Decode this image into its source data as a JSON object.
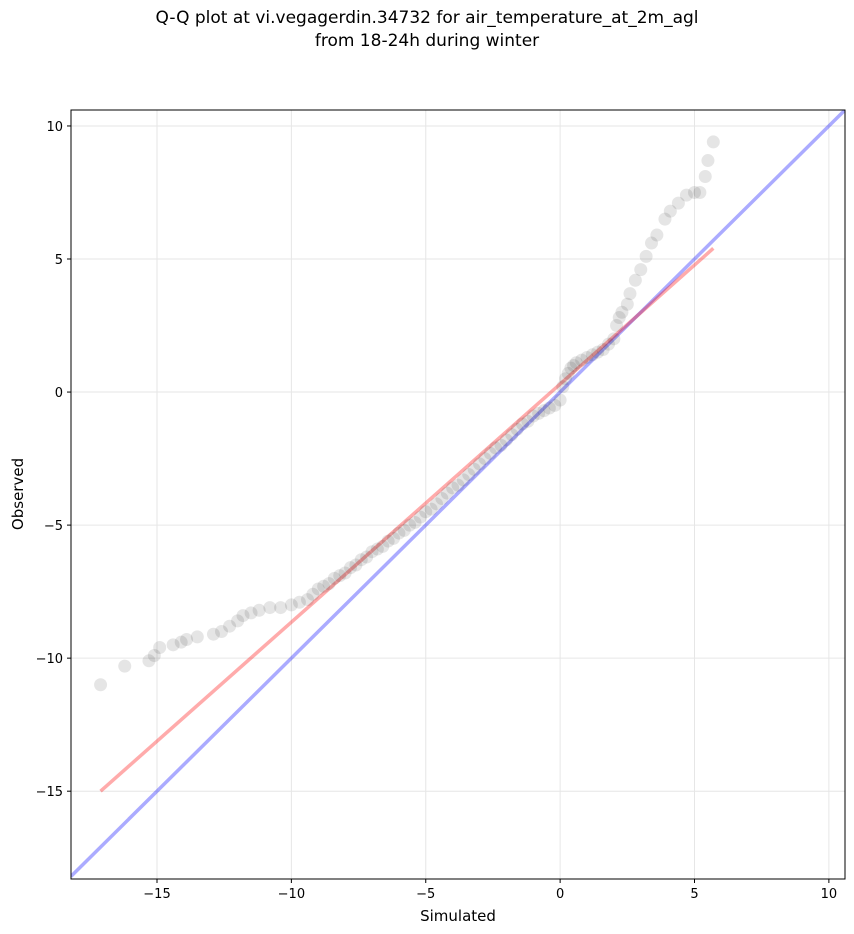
{
  "title": {
    "line1": "Q-Q plot at vi.vegagerdin.34732 for air_temperature_at_2m_agl",
    "line2": "from 18-24h during winter"
  },
  "chart_data": {
    "type": "scatter",
    "xlabel": "Simulated",
    "ylabel": "Observed",
    "xlim": [
      -18.2,
      10.6
    ],
    "ylim": [
      -18.3,
      10.6
    ],
    "xticks": [
      -15,
      -10,
      -5,
      0,
      5,
      10
    ],
    "yticks": [
      -15,
      -10,
      -5,
      0,
      5,
      10
    ],
    "xtick_labels": [
      "−15",
      "−10",
      "−5",
      "0",
      "5",
      "10"
    ],
    "ytick_labels": [
      "−15",
      "−10",
      "−5",
      "0",
      "5",
      "10"
    ],
    "grid": true,
    "colors": {
      "points": "#000000",
      "identity_line": "#0000ff",
      "fit_line": "#ff0000"
    },
    "identity_line": {
      "x": [
        -18.2,
        10.6
      ],
      "y": [
        -18.2,
        10.6
      ]
    },
    "fit_line": {
      "x": [
        -17.1,
        5.7
      ],
      "y": [
        -15.0,
        5.4
      ]
    },
    "quantiles": {
      "x": [
        -17.1,
        -16.2,
        -15.3,
        -15.1,
        -14.9,
        -14.4,
        -14.1,
        -13.9,
        -13.5,
        -12.9,
        -12.6,
        -12.3,
        -12.0,
        -11.8,
        -11.5,
        -11.2,
        -10.8,
        -10.4,
        -10.0,
        -9.7,
        -9.4,
        -9.2,
        -9.0,
        -8.8,
        -8.6,
        -8.4,
        -8.2,
        -8.0,
        -7.8,
        -7.6,
        -7.4,
        -7.2,
        -7.0,
        -6.8,
        -6.6,
        -6.4,
        -6.2,
        -6.0,
        -5.8,
        -5.6,
        -5.4,
        -5.2,
        -5.0,
        -4.8,
        -4.6,
        -4.4,
        -4.2,
        -4.0,
        -3.8,
        -3.6,
        -3.4,
        -3.2,
        -3.0,
        -2.8,
        -2.6,
        -2.4,
        -2.2,
        -2.0,
        -1.8,
        -1.6,
        -1.4,
        -1.2,
        -1.0,
        -0.8,
        -0.6,
        -0.4,
        -0.2,
        0.0,
        0.1,
        0.2,
        0.3,
        0.4,
        0.5,
        0.6,
        0.8,
        1.0,
        1.2,
        1.4,
        1.6,
        1.8,
        2.0,
        2.1,
        2.2,
        2.3,
        2.5,
        2.6,
        2.8,
        3.0,
        3.2,
        3.4,
        3.6,
        3.9,
        4.1,
        4.4,
        4.7,
        5.0,
        5.2,
        5.4,
        5.5,
        5.7
      ],
      "y": [
        -11.0,
        -10.3,
        -10.1,
        -9.9,
        -9.6,
        -9.5,
        -9.4,
        -9.3,
        -9.2,
        -9.1,
        -9.0,
        -8.8,
        -8.6,
        -8.4,
        -8.3,
        -8.2,
        -8.1,
        -8.1,
        -8.0,
        -7.9,
        -7.8,
        -7.6,
        -7.4,
        -7.3,
        -7.2,
        -7.0,
        -6.9,
        -6.8,
        -6.6,
        -6.5,
        -6.3,
        -6.2,
        -6.0,
        -5.9,
        -5.8,
        -5.6,
        -5.5,
        -5.3,
        -5.2,
        -5.0,
        -4.9,
        -4.7,
        -4.5,
        -4.4,
        -4.2,
        -4.0,
        -3.8,
        -3.6,
        -3.5,
        -3.3,
        -3.1,
        -2.9,
        -2.7,
        -2.5,
        -2.3,
        -2.1,
        -2.0,
        -1.8,
        -1.6,
        -1.4,
        -1.2,
        -1.1,
        -0.9,
        -0.8,
        -0.7,
        -0.6,
        -0.5,
        -0.3,
        0.2,
        0.5,
        0.7,
        0.9,
        1.0,
        1.1,
        1.2,
        1.3,
        1.4,
        1.5,
        1.6,
        1.8,
        2.0,
        2.5,
        2.8,
        3.0,
        3.3,
        3.7,
        4.2,
        4.6,
        5.1,
        5.6,
        5.9,
        6.5,
        6.8,
        7.1,
        7.4,
        7.5,
        7.5,
        8.1,
        8.7,
        9.4
      ]
    }
  }
}
